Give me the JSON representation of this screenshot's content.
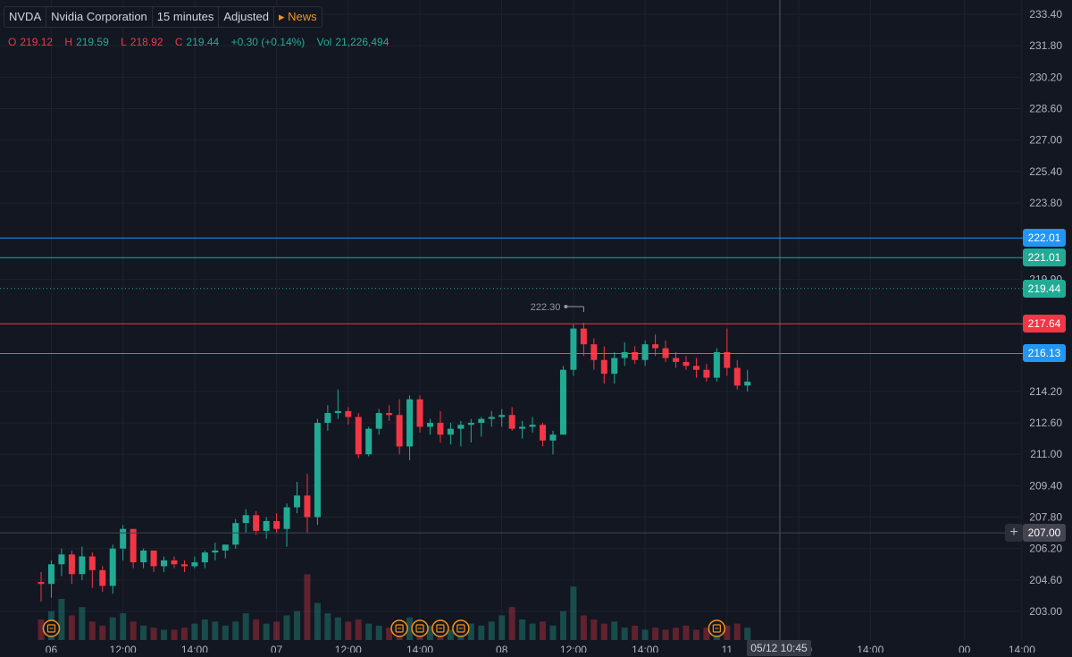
{
  "header": {
    "symbol": "NVDA",
    "company": "Nvidia Corporation",
    "interval": "15 minutes",
    "adjustment": "Adjusted",
    "news_label": "News"
  },
  "ohlc": {
    "o_label": "O",
    "o": "219.12",
    "h_label": "H",
    "h": "219.59",
    "l_label": "L",
    "l": "218.92",
    "c_label": "C",
    "c": "219.44",
    "change": "+0.30 (+0.14%)",
    "vol_label": "Vol",
    "vol": "21,226,494"
  },
  "colors": {
    "bg": "#131722",
    "up": "#22ab94",
    "down": "#f23645",
    "grid": "#1e222d"
  },
  "chart_data": {
    "type": "candlestick",
    "ylim": [
      202.0,
      234.0
    ],
    "y_ticks": [
      "233.40",
      "231.80",
      "230.20",
      "228.60",
      "227.00",
      "225.40",
      "223.80",
      "219.90",
      "214.20",
      "212.60",
      "211.00",
      "209.40",
      "207.80",
      "206.20",
      "204.60",
      "203.00"
    ],
    "x_ticks": [
      {
        "label": "06",
        "index": 1
      },
      {
        "label": "12:00",
        "index": 8
      },
      {
        "label": "14:00",
        "index": 15
      },
      {
        "label": "07",
        "index": 23
      },
      {
        "label": "12:00",
        "index": 30
      },
      {
        "label": "14:00",
        "index": 37
      },
      {
        "label": "08",
        "index": 45
      },
      {
        "label": "12:00",
        "index": 52
      },
      {
        "label": "14:00",
        "index": 59
      },
      {
        "label": "11",
        "index": 67
      },
      {
        "label": "12:00",
        "index": 74
      },
      {
        "label": "14:00",
        "index": 81
      },
      {
        "label": "00",
        "index": 90.2
      },
      {
        "label": "14:00",
        "index": 95.8
      },
      {
        "label": "13",
        "index": 103.8
      }
    ],
    "crosshair_time": "05/12 10:45",
    "max_marker": "222.30",
    "price_lines": [
      {
        "price": 222.01,
        "label": "222.01",
        "color": "#2196f3"
      },
      {
        "price": 221.01,
        "label": "221.01",
        "color": "#22ab94"
      },
      {
        "price": 217.64,
        "label": "217.64",
        "color": "#f23645"
      },
      {
        "price": 216.13,
        "label": "216.13",
        "color": "#2196f3"
      },
      {
        "price": 207.0,
        "label": "207.00",
        "color": "#434651"
      }
    ],
    "last_price": {
      "price": 219.44,
      "label": "219.44",
      "color": "#22ab94"
    },
    "earnings_marker_indices": [
      1,
      35,
      37,
      39,
      41,
      66
    ],
    "candles": [
      [
        204.5,
        205.0,
        203.5,
        204.4
      ],
      [
        204.4,
        205.6,
        203.7,
        205.4
      ],
      [
        205.4,
        206.2,
        204.8,
        205.9
      ],
      [
        205.9,
        206.1,
        204.4,
        204.9
      ],
      [
        204.9,
        206.3,
        204.6,
        205.8
      ],
      [
        205.8,
        206.0,
        204.2,
        205.1
      ],
      [
        205.1,
        205.3,
        204.0,
        204.3
      ],
      [
        204.3,
        206.4,
        203.9,
        206.2
      ],
      [
        206.2,
        207.4,
        205.6,
        207.2
      ],
      [
        207.2,
        207.1,
        205.2,
        205.5
      ],
      [
        205.5,
        206.2,
        205.2,
        206.1
      ],
      [
        206.1,
        206.0,
        205.0,
        205.3
      ],
      [
        205.3,
        205.8,
        205.0,
        205.6
      ],
      [
        205.6,
        205.8,
        205.2,
        205.4
      ],
      [
        205.4,
        205.6,
        205.0,
        205.3
      ],
      [
        205.3,
        205.8,
        205.2,
        205.5
      ],
      [
        205.5,
        206.1,
        205.2,
        206.0
      ],
      [
        206.0,
        206.5,
        205.6,
        206.1
      ],
      [
        206.1,
        206.3,
        205.7,
        206.4
      ],
      [
        206.4,
        207.7,
        206.2,
        207.5
      ],
      [
        207.5,
        208.2,
        207.0,
        207.9
      ],
      [
        207.9,
        208.1,
        206.9,
        207.1
      ],
      [
        207.1,
        207.8,
        206.7,
        207.6
      ],
      [
        207.6,
        208.0,
        207.0,
        207.2
      ],
      [
        207.2,
        208.5,
        206.3,
        208.3
      ],
      [
        208.3,
        209.6,
        208.0,
        208.9
      ],
      [
        208.9,
        210.0,
        207.0,
        207.8
      ],
      [
        207.8,
        212.8,
        207.4,
        212.6
      ],
      [
        212.6,
        213.5,
        212.2,
        213.1
      ],
      [
        213.1,
        214.3,
        212.8,
        213.2
      ],
      [
        213.2,
        213.4,
        212.5,
        212.9
      ],
      [
        212.9,
        213.1,
        210.8,
        211.0
      ],
      [
        211.0,
        212.4,
        210.9,
        212.3
      ],
      [
        212.3,
        213.3,
        212.0,
        213.1
      ],
      [
        213.1,
        213.5,
        212.7,
        213.0
      ],
      [
        213.0,
        213.8,
        211.0,
        211.4
      ],
      [
        211.4,
        214.0,
        210.7,
        213.8
      ],
      [
        213.8,
        214.0,
        212.1,
        212.4
      ],
      [
        212.4,
        212.8,
        212.0,
        212.6
      ],
      [
        212.6,
        213.2,
        211.6,
        212.0
      ],
      [
        212.0,
        212.6,
        211.5,
        212.3
      ],
      [
        212.3,
        212.7,
        211.4,
        212.5
      ],
      [
        212.5,
        212.8,
        211.6,
        212.6
      ],
      [
        212.6,
        212.9,
        211.9,
        212.8
      ],
      [
        212.8,
        213.2,
        212.4,
        212.9
      ],
      [
        212.9,
        213.3,
        212.4,
        213.0
      ],
      [
        213.0,
        213.4,
        212.2,
        212.3
      ],
      [
        212.3,
        212.7,
        211.8,
        212.4
      ],
      [
        212.4,
        212.9,
        212.1,
        212.5
      ],
      [
        212.5,
        212.6,
        211.4,
        211.7
      ],
      [
        211.7,
        212.2,
        211.0,
        212.0
      ],
      [
        212.0,
        215.5,
        212.0,
        215.3
      ],
      [
        215.3,
        217.6,
        215.0,
        217.4
      ],
      [
        217.4,
        217.7,
        216.0,
        216.6
      ],
      [
        216.6,
        216.9,
        215.3,
        215.8
      ],
      [
        215.8,
        216.5,
        214.6,
        215.1
      ],
      [
        215.1,
        216.2,
        214.6,
        215.9
      ],
      [
        215.9,
        216.7,
        215.5,
        216.2
      ],
      [
        216.2,
        216.5,
        215.6,
        215.8
      ],
      [
        215.8,
        216.8,
        215.5,
        216.6
      ],
      [
        216.6,
        217.1,
        216.0,
        216.4
      ],
      [
        216.4,
        216.8,
        215.7,
        215.9
      ],
      [
        215.9,
        216.2,
        215.4,
        215.7
      ],
      [
        215.7,
        216.0,
        215.3,
        215.5
      ],
      [
        215.5,
        215.9,
        214.9,
        215.3
      ],
      [
        215.3,
        215.6,
        214.7,
        214.9
      ],
      [
        214.9,
        216.4,
        214.7,
        216.2
      ],
      [
        216.2,
        217.4,
        215.0,
        215.4
      ],
      [
        215.4,
        215.8,
        214.3,
        214.5
      ],
      [
        214.5,
        215.3,
        214.2,
        214.7
      ]
    ],
    "volumes": [
      10,
      14,
      20,
      12,
      16,
      9,
      7,
      11,
      13,
      9,
      7,
      6,
      5,
      5,
      6,
      8,
      10,
      9,
      7,
      9,
      13,
      10,
      8,
      9,
      12,
      14,
      32,
      18,
      13,
      11,
      9,
      10,
      8,
      7,
      6,
      8,
      11,
      9,
      7,
      6,
      5,
      6,
      8,
      7,
      9,
      12,
      16,
      10,
      8,
      9,
      7,
      14,
      26,
      12,
      10,
      8,
      9,
      6,
      7,
      5,
      6,
      5,
      6,
      7,
      5,
      6,
      5,
      7,
      8,
      6
    ]
  }
}
